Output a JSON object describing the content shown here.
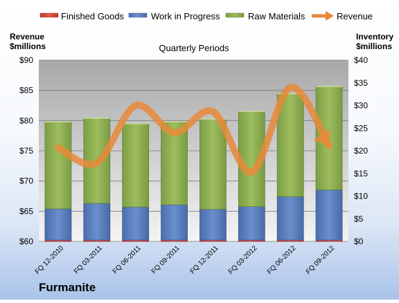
{
  "chart_data": {
    "type": "bar",
    "stacked": true,
    "company": "Furmanite",
    "title": "Quarterly Periods",
    "ylabel_left": [
      "Revenue",
      "$millions"
    ],
    "ylabel_right": [
      "Inventory",
      "$millions"
    ],
    "ylim_left": [
      60,
      90
    ],
    "ylim_right": [
      0,
      40
    ],
    "yticks_left": [
      "$60",
      "$65",
      "$70",
      "$75",
      "$80",
      "$85",
      "$90"
    ],
    "yticks_right": [
      "$0",
      "$5",
      "$10",
      "$15",
      "$20",
      "$25",
      "$30",
      "$35",
      "$40"
    ],
    "grid": true,
    "legend_position": "top",
    "categories": [
      "FQ 12-2010",
      "FQ 03-2011",
      "FQ 06-2011",
      "FQ 09-2011",
      "FQ 12-2011",
      "FQ 03-2012",
      "FQ 06-2012",
      "FQ 09-2012"
    ],
    "series": [
      {
        "name": "Finished Goods",
        "axis": "right",
        "kind": "bar",
        "color": "#d9534f",
        "values": [
          0.3,
          0.3,
          0.3,
          0.3,
          0.3,
          0.3,
          0.3,
          0.3
        ]
      },
      {
        "name": "Work in Progress",
        "axis": "right",
        "kind": "bar",
        "color": "#5a7fc0",
        "values": [
          6.9,
          8.1,
          7.3,
          7.8,
          6.8,
          7.4,
          9.6,
          11.1
        ]
      },
      {
        "name": "Raw Materials",
        "axis": "right",
        "kind": "bar",
        "color": "#8aac4e",
        "values": [
          19.2,
          18.8,
          18.4,
          18.3,
          19.9,
          21.0,
          22.7,
          22.8
        ]
      },
      {
        "name": "Revenue",
        "axis": "left",
        "kind": "line",
        "color": "#e8893a",
        "values": [
          75.5,
          73.0,
          82.5,
          78.0,
          81.5,
          71.5,
          85.5,
          75.8
        ]
      }
    ]
  }
}
